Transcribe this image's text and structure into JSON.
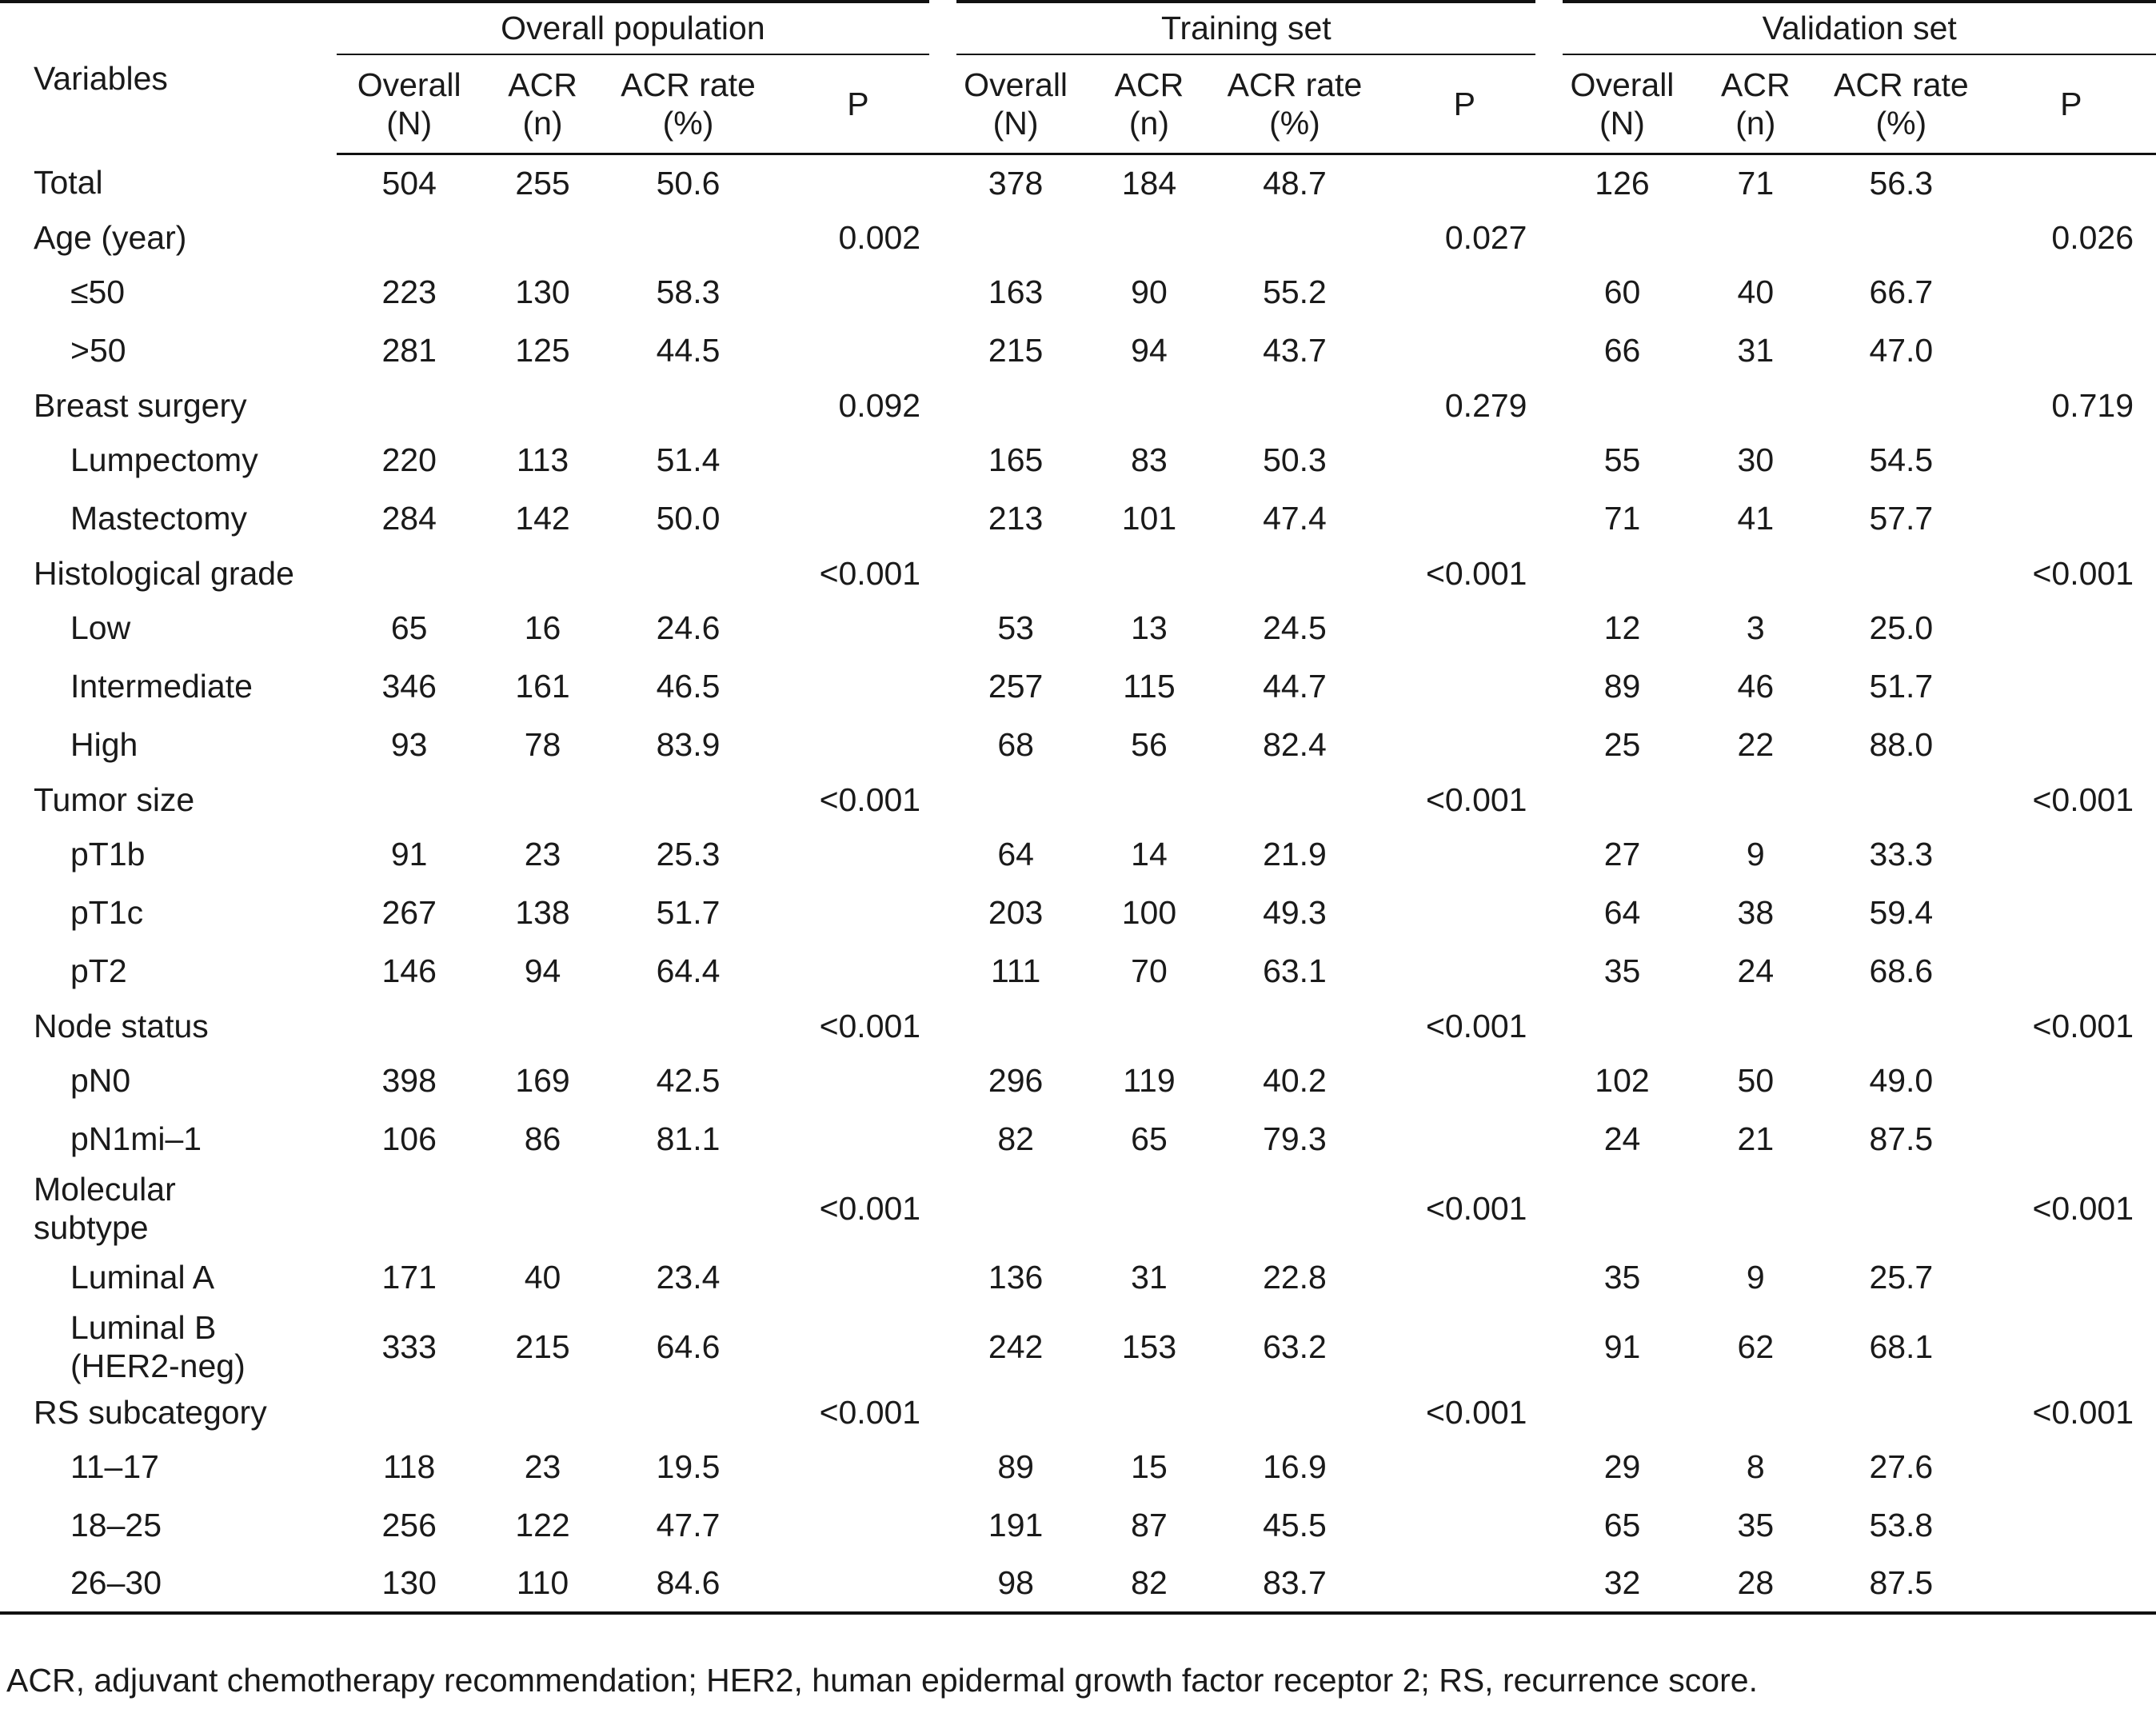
{
  "groups": [
    "Overall population",
    "Training set",
    "Validation set"
  ],
  "variables_header": "Variables",
  "subheaders": {
    "overall": [
      "Overall",
      "(N)"
    ],
    "acr": [
      "ACR",
      "(n)"
    ],
    "rate": [
      "ACR rate",
      "(%)"
    ],
    "p": "P"
  },
  "rows": [
    {
      "label": "Total",
      "indent": false,
      "v": [
        "504",
        "255",
        "50.6",
        "",
        "378",
        "184",
        "48.7",
        "",
        "126",
        "71",
        "56.3",
        ""
      ]
    },
    {
      "label": "Age (year)",
      "indent": false,
      "v": [
        "",
        "",
        "",
        "0.002",
        "",
        "",
        "",
        "0.027",
        "",
        "",
        "",
        "0.026"
      ]
    },
    {
      "label": "≤50",
      "indent": true,
      "v": [
        "223",
        "130",
        "58.3",
        "",
        "163",
        "90",
        "55.2",
        "",
        "60",
        "40",
        "66.7",
        ""
      ]
    },
    {
      "label": ">50",
      "indent": true,
      "v": [
        "281",
        "125",
        "44.5",
        "",
        "215",
        "94",
        "43.7",
        "",
        "66",
        "31",
        "47.0",
        ""
      ]
    },
    {
      "label": "Breast surgery",
      "indent": false,
      "v": [
        "",
        "",
        "",
        "0.092",
        "",
        "",
        "",
        "0.279",
        "",
        "",
        "",
        "0.719"
      ]
    },
    {
      "label": "Lumpectomy",
      "indent": true,
      "v": [
        "220",
        "113",
        "51.4",
        "",
        "165",
        "83",
        "50.3",
        "",
        "55",
        "30",
        "54.5",
        ""
      ]
    },
    {
      "label": "Mastectomy",
      "indent": true,
      "v": [
        "284",
        "142",
        "50.0",
        "",
        "213",
        "101",
        "47.4",
        "",
        "71",
        "41",
        "57.7",
        ""
      ]
    },
    {
      "label": "Histological grade",
      "indent": false,
      "v": [
        "",
        "",
        "",
        "<0.001",
        "",
        "",
        "",
        "<0.001",
        "",
        "",
        "",
        "<0.001"
      ]
    },
    {
      "label": "Low",
      "indent": true,
      "v": [
        "65",
        "16",
        "24.6",
        "",
        "53",
        "13",
        "24.5",
        "",
        "12",
        "3",
        "25.0",
        ""
      ]
    },
    {
      "label": "Intermediate",
      "indent": true,
      "v": [
        "346",
        "161",
        "46.5",
        "",
        "257",
        "115",
        "44.7",
        "",
        "89",
        "46",
        "51.7",
        ""
      ]
    },
    {
      "label": "High",
      "indent": true,
      "v": [
        "93",
        "78",
        "83.9",
        "",
        "68",
        "56",
        "82.4",
        "",
        "25",
        "22",
        "88.0",
        ""
      ]
    },
    {
      "label": "Tumor size",
      "indent": false,
      "v": [
        "",
        "",
        "",
        "<0.001",
        "",
        "",
        "",
        "<0.001",
        "",
        "",
        "",
        "<0.001"
      ]
    },
    {
      "label": "pT1b",
      "indent": true,
      "v": [
        "91",
        "23",
        "25.3",
        "",
        "64",
        "14",
        "21.9",
        "",
        "27",
        "9",
        "33.3",
        ""
      ]
    },
    {
      "label": "pT1c",
      "indent": true,
      "v": [
        "267",
        "138",
        "51.7",
        "",
        "203",
        "100",
        "49.3",
        "",
        "64",
        "38",
        "59.4",
        ""
      ]
    },
    {
      "label": "pT2",
      "indent": true,
      "v": [
        "146",
        "94",
        "64.4",
        "",
        "111",
        "70",
        "63.1",
        "",
        "35",
        "24",
        "68.6",
        ""
      ]
    },
    {
      "label": "Node status",
      "indent": false,
      "v": [
        "",
        "",
        "",
        "<0.001",
        "",
        "",
        "",
        "<0.001",
        "",
        "",
        "",
        "<0.001"
      ]
    },
    {
      "label": "pN0",
      "indent": true,
      "v": [
        "398",
        "169",
        "42.5",
        "",
        "296",
        "119",
        "40.2",
        "",
        "102",
        "50",
        "49.0",
        ""
      ]
    },
    {
      "label": "pN1mi–1",
      "indent": true,
      "v": [
        "106",
        "86",
        "81.1",
        "",
        "82",
        "65",
        "79.3",
        "",
        "24",
        "21",
        "87.5",
        ""
      ]
    },
    {
      "label": [
        "Molecular",
        "subtype"
      ],
      "indent": false,
      "v": [
        "",
        "",
        "",
        "<0.001",
        "",
        "",
        "",
        "<0.001",
        "",
        "",
        "",
        "<0.001"
      ]
    },
    {
      "label": "Luminal A",
      "indent": true,
      "v": [
        "171",
        "40",
        "23.4",
        "",
        "136",
        "31",
        "22.8",
        "",
        "35",
        "9",
        "25.7",
        ""
      ]
    },
    {
      "label": [
        "Luminal B",
        "(HER2-neg)"
      ],
      "indent": true,
      "v": [
        "333",
        "215",
        "64.6",
        "",
        "242",
        "153",
        "63.2",
        "",
        "91",
        "62",
        "68.1",
        ""
      ]
    },
    {
      "label": "RS subcategory",
      "indent": false,
      "v": [
        "",
        "",
        "",
        "<0.001",
        "",
        "",
        "",
        "<0.001",
        "",
        "",
        "",
        "<0.001"
      ]
    },
    {
      "label": "11–17",
      "indent": true,
      "v": [
        "118",
        "23",
        "19.5",
        "",
        "89",
        "15",
        "16.9",
        "",
        "29",
        "8",
        "27.6",
        ""
      ]
    },
    {
      "label": "18–25",
      "indent": true,
      "v": [
        "256",
        "122",
        "47.7",
        "",
        "191",
        "87",
        "45.5",
        "",
        "65",
        "35",
        "53.8",
        ""
      ]
    },
    {
      "label": "26–30",
      "indent": true,
      "v": [
        "130",
        "110",
        "84.6",
        "",
        "98",
        "82",
        "83.7",
        "",
        "32",
        "28",
        "87.5",
        ""
      ]
    }
  ],
  "footnote": "ACR, adjuvant chemotherapy recommendation; HER2, human epidermal growth factor receptor 2; RS, recurrence score."
}
